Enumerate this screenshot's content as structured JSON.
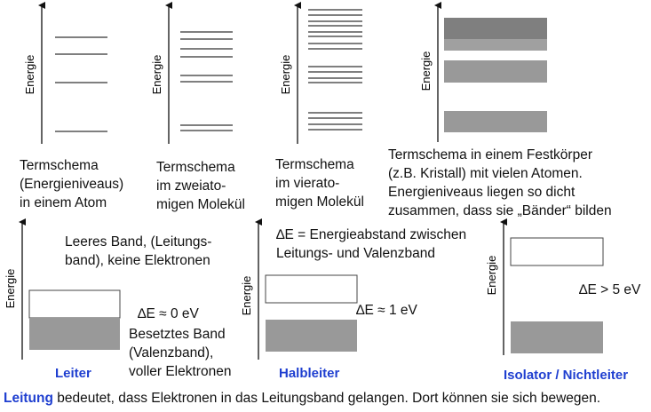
{
  "axis_label": "Energie",
  "top": {
    "atom_caption": "Termschema\n(Energieniveaus)\nin einem Atom",
    "dimer_caption": "Termschema\nim zweiato-\nmigen Molekül",
    "tetramer_caption": "Termschema\nim vierato-\nmigen Molekül",
    "solid_caption": "Termschema in einem Festkörper\n(z.B. Kristall) mit vielen Atomen.\nEnergieniveaus liegen so dicht\nzusammen, dass sie „Bänder“ bilden"
  },
  "bottom": {
    "conductor": {
      "empty_band_text": "Leeres Band, (Leitungs-\nband), keine Elektronen",
      "delta": "∆E ≈ 0 eV",
      "filled_band_text": "Besetztes Band\n(Valenzband),\nvoller Elektronen",
      "label": "Leiter"
    },
    "semiconductor": {
      "gap_text": "∆E = Energieabstand zwischen\nLeitungs- und Valenzband",
      "delta": "∆E ≈ 1 eV",
      "label": "Halbleiter"
    },
    "insulator": {
      "delta": "∆E > 5 eV",
      "label": "Isolator / Nichtleiter"
    }
  },
  "footer": {
    "highlight": "Leitung",
    "rest": " bedeutet, dass Elektronen in das Leitungsband gelangen. Dort können sie sich bewegen."
  },
  "colors": {
    "band_fill": "#999999",
    "band_dark": "#7f7f7f",
    "level_line": "#555555",
    "accent": "#1f3fd0"
  }
}
